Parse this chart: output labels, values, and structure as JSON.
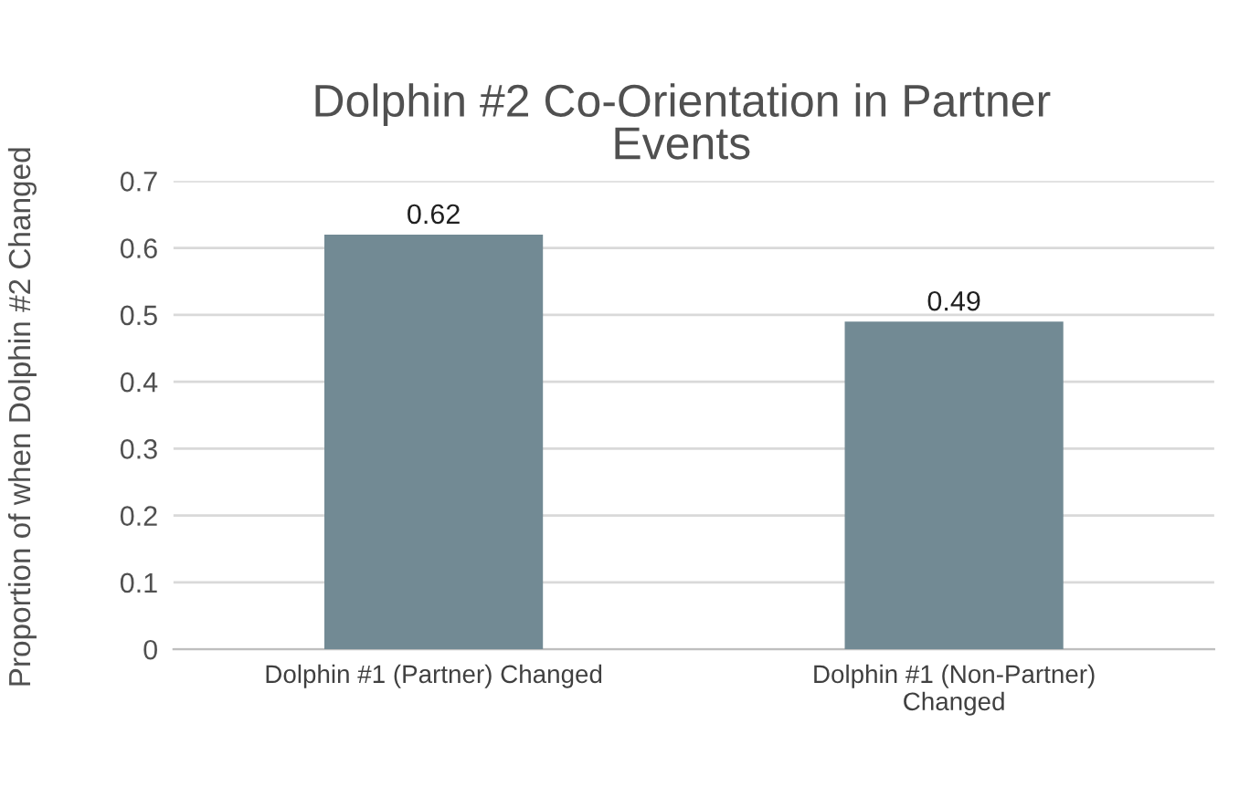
{
  "chart_data": {
    "type": "bar",
    "title": "Dolphin #2 Co-Orientation in Partner\nEvents",
    "ylabel": "Proportion of when Dolphin #2 Changed",
    "categories": [
      "Dolphin #1 (Partner) Changed",
      "Dolphin #1 (Non-Partner)\nChanged"
    ],
    "values": [
      0.62,
      0.49
    ],
    "color": "#728a94",
    "ylim": [
      0,
      0.7
    ],
    "yticks": [
      0,
      0.1,
      0.2,
      0.3,
      0.4,
      0.5,
      0.6,
      0.7
    ],
    "grid": "y",
    "data_labels": true
  }
}
